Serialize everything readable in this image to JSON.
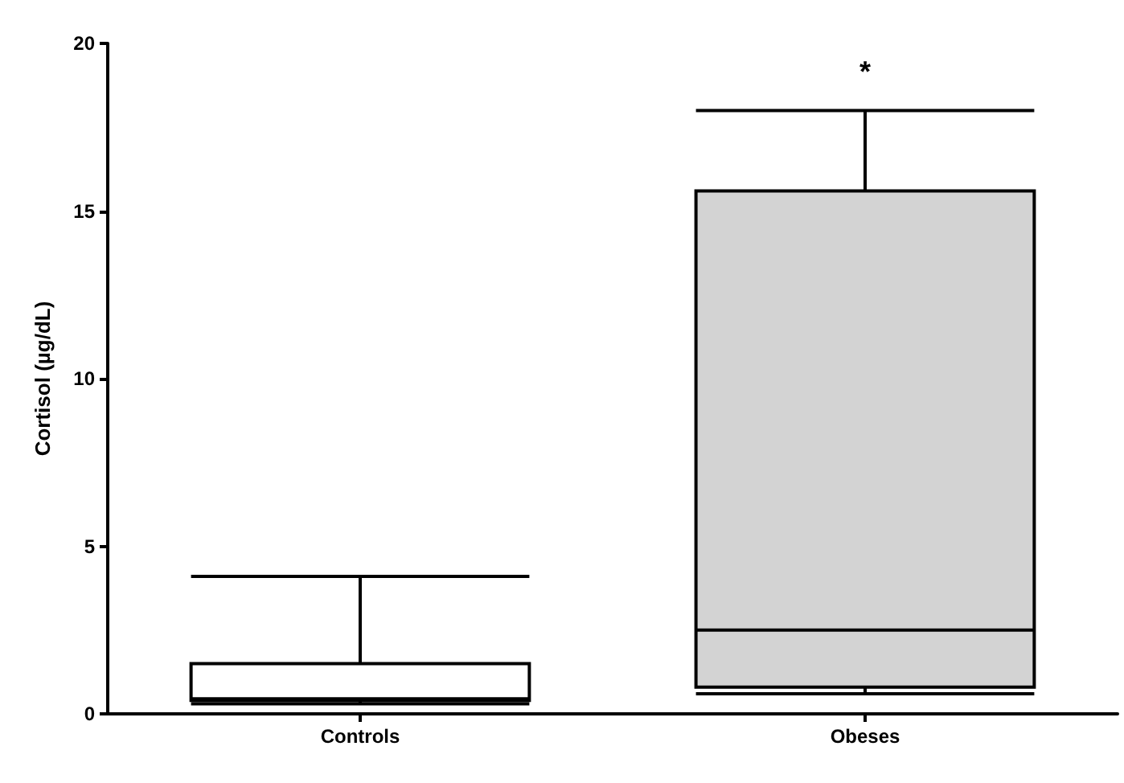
{
  "chart_data": {
    "type": "box",
    "ylabel": "Cortisol (µg/dL)",
    "categories": [
      "Controls",
      "Obeses"
    ],
    "boxes": [
      {
        "low": 0.3,
        "q1": 0.4,
        "median": 0.45,
        "q3": 1.5,
        "high": 4.1
      },
      {
        "low": 0.6,
        "q1": 0.8,
        "median": 2.5,
        "q3": 15.6,
        "high": 18
      }
    ],
    "colors": [
      "#ffffff",
      "#d3d3d3"
    ],
    "ylim": [
      0,
      20
    ],
    "yticks": [
      0,
      5,
      10,
      15,
      20
    ],
    "grid": false,
    "annotations": [
      "*"
    ]
  }
}
